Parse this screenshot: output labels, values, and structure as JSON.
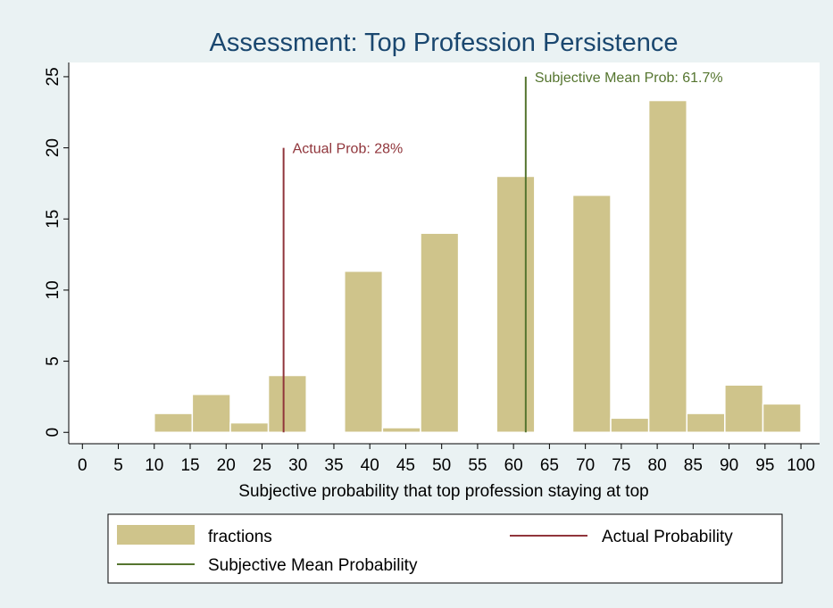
{
  "chart_data": {
    "type": "histogram",
    "title": "Assessment: Top Profession Persistence",
    "x_label": "Subjective probability that top profession staying at top",
    "bins": [
      10,
      15.29,
      20.59,
      25.88,
      31.18,
      36.47,
      41.76,
      47.06,
      52.35,
      57.65,
      62.94,
      68.24,
      73.53,
      78.82,
      84.12,
      89.41,
      94.71,
      100
    ],
    "series": [
      {
        "name": "fractions",
        "color": "#cfc48b",
        "values": [
          1.33,
          2.67,
          0.67,
          4,
          0,
          11.33,
          0.33,
          14,
          0,
          18,
          0,
          16.67,
          1,
          23.33,
          1.33,
          3.33,
          2
        ]
      }
    ],
    "lines": [
      {
        "name": "Actual Probability",
        "label": "Actual Prob: 28%",
        "x": 28,
        "ymax": 20,
        "color": "#90353b"
      },
      {
        "name": "Subjective Mean Probability",
        "label": "Subjective Mean Prob: 61.7%",
        "x": 61.7,
        "ymax": 25,
        "color": "#55752f"
      }
    ],
    "xlim": [
      -1.9,
      102.6
    ],
    "ylim": [
      -0.8,
      26
    ],
    "xticks": [
      0,
      5,
      10,
      15,
      20,
      25,
      30,
      35,
      40,
      45,
      50,
      55,
      60,
      65,
      70,
      75,
      80,
      85,
      90,
      95,
      100
    ],
    "yticks": [
      0,
      5,
      10,
      15,
      20,
      25
    ],
    "grid": false
  }
}
